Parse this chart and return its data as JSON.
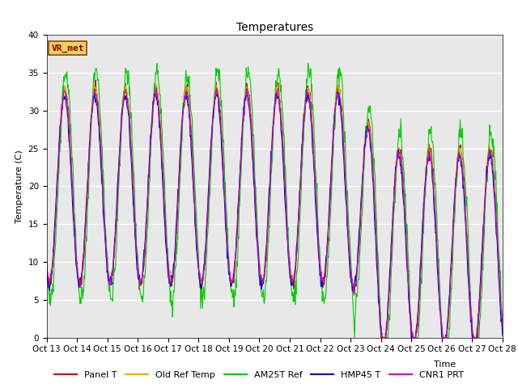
{
  "title": "Temperatures",
  "xlabel": "Time",
  "ylabel": "Temperature (C)",
  "ylim": [
    0,
    40
  ],
  "background_color": "#e8e8e8",
  "figure_color": "#ffffff",
  "x_tick_labels": [
    "Oct 13",
    "Oct 14",
    "Oct 15",
    "Oct 16",
    "Oct 17",
    "Oct 18",
    "Oct 19",
    "Oct 20",
    "Oct 21",
    "Oct 22",
    "Oct 23",
    "Oct 24",
    "Oct 25",
    "Oct 26",
    "Oct 27",
    "Oct 28"
  ],
  "annotation_text": "VR_met",
  "series_colors": [
    "#cc0000",
    "#ffa500",
    "#00cc00",
    "#0000cc",
    "#cc00cc"
  ],
  "series_names": [
    "Panel T",
    "Old Ref Temp",
    "AM25T Ref",
    "HMP45 T",
    "CNR1 PRT"
  ],
  "n_points": 960,
  "days": 15,
  "title_fontsize": 10,
  "axis_label_fontsize": 8,
  "tick_fontsize": 7.5,
  "legend_fontsize": 8
}
